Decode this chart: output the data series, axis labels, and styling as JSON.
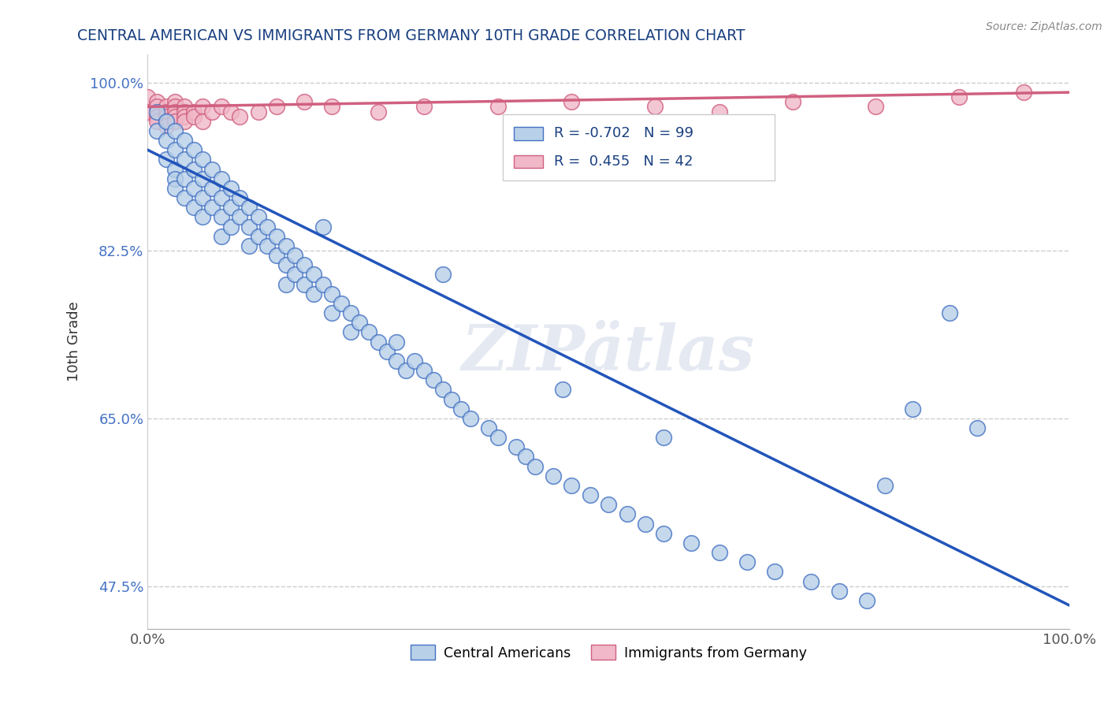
{
  "title": "CENTRAL AMERICAN VS IMMIGRANTS FROM GERMANY 10TH GRADE CORRELATION CHART",
  "source": "Source: ZipAtlas.com",
  "ylabel": "10th Grade",
  "xlim": [
    0.0,
    1.0
  ],
  "ylim": [
    0.43,
    1.03
  ],
  "yticks": [
    0.475,
    0.65,
    0.825,
    1.0
  ],
  "yticklabels": [
    "47.5%",
    "65.0%",
    "82.5%",
    "100.0%"
  ],
  "xtick_left": "0.0%",
  "xtick_right": "100.0%",
  "blue_R": -0.702,
  "blue_N": 99,
  "pink_R": 0.455,
  "pink_N": 42,
  "blue_fill": "#b8d0e8",
  "blue_edge": "#4472c4",
  "blue_line": "#2255bb",
  "pink_fill": "#f0b8c8",
  "pink_edge": "#d06080",
  "pink_line": "#d06080",
  "legend_label_blue": "Central Americans",
  "legend_label_pink": "Immigrants from Germany",
  "watermark": "ZIPätlas",
  "grid_color": "#cccccc",
  "bg_color": "#ffffff",
  "title_color": "#1a4080",
  "ytick_color": "#4472c4",
  "legend_R_color": "#1a4080",
  "legend_N_color": "#d06080",
  "blue_line_y0": 0.93,
  "blue_line_y1": 0.455,
  "pink_line_y0": 0.975,
  "pink_line_y1": 0.99,
  "blue_x": [
    0.01,
    0.01,
    0.02,
    0.02,
    0.02,
    0.03,
    0.03,
    0.03,
    0.03,
    0.03,
    0.04,
    0.04,
    0.04,
    0.04,
    0.05,
    0.05,
    0.05,
    0.05,
    0.06,
    0.06,
    0.06,
    0.06,
    0.07,
    0.07,
    0.07,
    0.08,
    0.08,
    0.08,
    0.08,
    0.09,
    0.09,
    0.09,
    0.1,
    0.1,
    0.11,
    0.11,
    0.11,
    0.12,
    0.12,
    0.13,
    0.13,
    0.14,
    0.14,
    0.15,
    0.15,
    0.15,
    0.16,
    0.16,
    0.17,
    0.17,
    0.18,
    0.18,
    0.19,
    0.2,
    0.2,
    0.21,
    0.22,
    0.22,
    0.23,
    0.24,
    0.25,
    0.26,
    0.27,
    0.28,
    0.29,
    0.3,
    0.31,
    0.32,
    0.33,
    0.34,
    0.35,
    0.37,
    0.38,
    0.4,
    0.41,
    0.42,
    0.44,
    0.46,
    0.48,
    0.5,
    0.52,
    0.54,
    0.56,
    0.59,
    0.62,
    0.65,
    0.68,
    0.72,
    0.75,
    0.78,
    0.8,
    0.83,
    0.87,
    0.9,
    0.56,
    0.45,
    0.32,
    0.27,
    0.19
  ],
  "blue_y": [
    0.97,
    0.95,
    0.96,
    0.94,
    0.92,
    0.95,
    0.93,
    0.91,
    0.9,
    0.89,
    0.94,
    0.92,
    0.9,
    0.88,
    0.93,
    0.91,
    0.89,
    0.87,
    0.92,
    0.9,
    0.88,
    0.86,
    0.91,
    0.89,
    0.87,
    0.9,
    0.88,
    0.86,
    0.84,
    0.89,
    0.87,
    0.85,
    0.88,
    0.86,
    0.87,
    0.85,
    0.83,
    0.86,
    0.84,
    0.85,
    0.83,
    0.84,
    0.82,
    0.83,
    0.81,
    0.79,
    0.82,
    0.8,
    0.81,
    0.79,
    0.8,
    0.78,
    0.79,
    0.78,
    0.76,
    0.77,
    0.76,
    0.74,
    0.75,
    0.74,
    0.73,
    0.72,
    0.71,
    0.7,
    0.71,
    0.7,
    0.69,
    0.68,
    0.67,
    0.66,
    0.65,
    0.64,
    0.63,
    0.62,
    0.61,
    0.6,
    0.59,
    0.58,
    0.57,
    0.56,
    0.55,
    0.54,
    0.53,
    0.52,
    0.51,
    0.5,
    0.49,
    0.48,
    0.47,
    0.46,
    0.58,
    0.66,
    0.76,
    0.64,
    0.63,
    0.68,
    0.8,
    0.73,
    0.85
  ],
  "pink_x": [
    0.0,
    0.0,
    0.01,
    0.01,
    0.01,
    0.01,
    0.02,
    0.02,
    0.02,
    0.02,
    0.02,
    0.03,
    0.03,
    0.03,
    0.03,
    0.03,
    0.04,
    0.04,
    0.04,
    0.04,
    0.05,
    0.05,
    0.06,
    0.06,
    0.07,
    0.08,
    0.09,
    0.1,
    0.12,
    0.14,
    0.17,
    0.2,
    0.25,
    0.3,
    0.38,
    0.46,
    0.55,
    0.62,
    0.7,
    0.79,
    0.88,
    0.95
  ],
  "pink_y": [
    0.985,
    0.97,
    0.98,
    0.975,
    0.965,
    0.96,
    0.975,
    0.97,
    0.965,
    0.96,
    0.955,
    0.98,
    0.975,
    0.97,
    0.965,
    0.96,
    0.975,
    0.97,
    0.965,
    0.96,
    0.97,
    0.965,
    0.975,
    0.96,
    0.97,
    0.975,
    0.97,
    0.965,
    0.97,
    0.975,
    0.98,
    0.975,
    0.97,
    0.975,
    0.975,
    0.98,
    0.975,
    0.97,
    0.98,
    0.975,
    0.985,
    0.99
  ]
}
